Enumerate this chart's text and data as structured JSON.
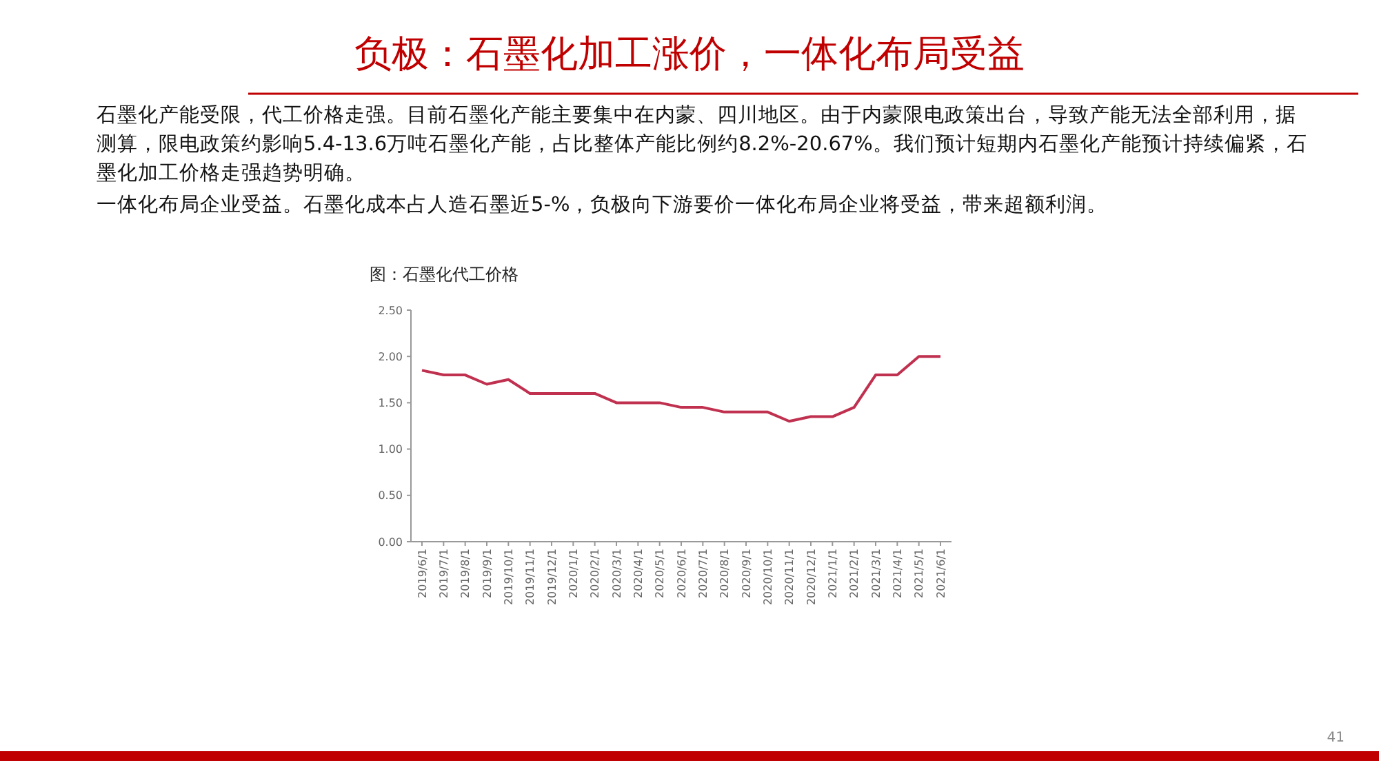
{
  "chart_data": {
    "type": "line",
    "title": "负极：石墨化加工涨价，一体化布局受益",
    "annotations": [
      "石墨化产能受限，代工价格走强。目前石墨化产能主要集中在内蒙、四川地区。由于内蒙限电政策出台，导致产能无法全部利用，据测算，限电政策约影响5.4-13.6万吨石墨化产能，占比整体产能比例约8.2%-20.67%。我们预计短期内石墨化产能预计持续偏紧，石墨化加工价格走强趋势明确。",
      "一体化布局企业受益。石墨化成本占人造石墨近5-%，负极向下游要价一体化布局企业将受益，带来超额利润。",
      "图：石墨化代工价格",
      "41"
    ],
    "categories": [
      "2019/6/1",
      "2019/7/1",
      "2019/8/1",
      "2019/9/1",
      "2019/10/1",
      "2019/11/1",
      "2019/12/1",
      "2020/1/1",
      "2020/2/1",
      "2020/3/1",
      "2020/4/1",
      "2020/5/1",
      "2020/6/1",
      "2020/7/1",
      "2020/8/1",
      "2020/9/1",
      "2020/10/1",
      "2020/11/1",
      "2020/12/1",
      "2021/1/1",
      "2021/2/1",
      "2021/3/1",
      "2021/4/1",
      "2021/5/1",
      "2021/6/1"
    ],
    "series": [
      {
        "color": "#c0304f",
        "values": [
          1.85,
          1.8,
          1.8,
          1.7,
          1.75,
          1.6,
          1.6,
          1.6,
          1.6,
          1.5,
          1.5,
          1.5,
          1.45,
          1.45,
          1.4,
          1.4,
          1.4,
          1.3,
          1.35,
          1.35,
          1.45,
          1.8,
          1.8,
          2.0,
          2.0
        ]
      }
    ],
    "ylim": [
      0,
      2.5
    ],
    "yticks": [
      {
        "value": 0,
        "label": "0.00"
      },
      {
        "value": 0.5,
        "label": "0.50"
      },
      {
        "value": 1,
        "label": "1.00"
      },
      {
        "value": 1.5,
        "label": "1.50"
      },
      {
        "value": 2,
        "label": "2.00"
      },
      {
        "value": 2.5,
        "label": "2.50"
      }
    ],
    "grid": false,
    "marker": "none",
    "line_style": "solid"
  }
}
